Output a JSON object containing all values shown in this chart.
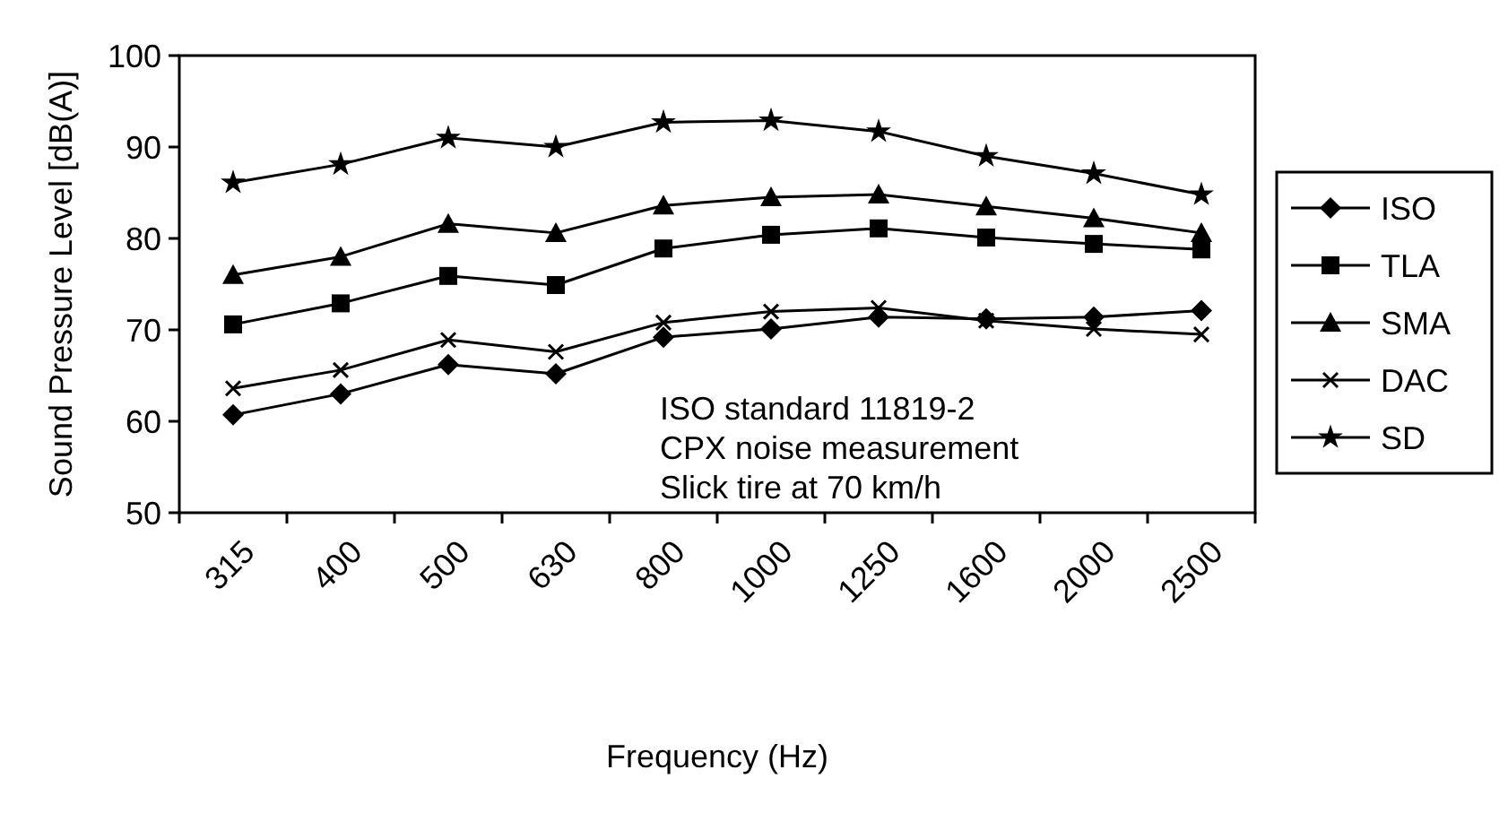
{
  "chart_data": {
    "type": "line",
    "xlabel": "Frequency (Hz)",
    "ylabel": "Sound Pressure Level [dB(A)]",
    "categories": [
      "315",
      "400",
      "500",
      "630",
      "800",
      "1000",
      "1250",
      "1600",
      "2000",
      "2500"
    ],
    "series": [
      {
        "name": "ISO",
        "color": "#000000",
        "marker": "diamond",
        "values": [
          60.7,
          63,
          66.2,
          65.2,
          69.2,
          70.1,
          71.4,
          71.2,
          71.4,
          72.1
        ]
      },
      {
        "name": "TLA",
        "color": "#000000",
        "marker": "square",
        "values": [
          70.6,
          72.9,
          75.9,
          74.9,
          78.9,
          80.4,
          81.1,
          80.1,
          79.4,
          78.8
        ]
      },
      {
        "name": "SMA",
        "color": "#000000",
        "marker": "triangle",
        "values": [
          76,
          78,
          81.6,
          80.6,
          83.6,
          84.5,
          84.8,
          83.5,
          82.2,
          80.6
        ]
      },
      {
        "name": "DAC",
        "color": "#000000",
        "marker": "cross",
        "values": [
          63.6,
          65.6,
          68.9,
          67.6,
          70.8,
          72,
          72.4,
          71,
          70.1,
          69.5
        ]
      },
      {
        "name": "SD",
        "color": "#000000",
        "marker": "star",
        "values": [
          86.1,
          88.1,
          91,
          90,
          92.7,
          92.9,
          91.7,
          89,
          87.1,
          84.8
        ]
      }
    ],
    "ylim": [
      50,
      100
    ],
    "yticks": [
      50,
      60,
      70,
      80,
      90,
      100
    ],
    "grid": false,
    "legend": "right",
    "line_style": "solid",
    "annotations": [
      "ISO standard 11819-2",
      "CPX noise measurement",
      "Slick tire at 70 km/h"
    ]
  }
}
